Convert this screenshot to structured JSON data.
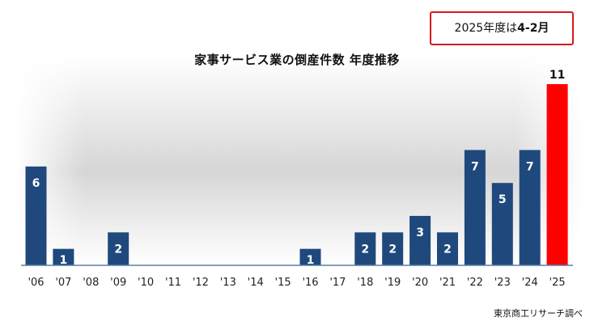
{
  "note": {
    "prefix": "2025年度は",
    "emphasis": "4-2月"
  },
  "source": "東京商工リサーチ調べ",
  "colors": {
    "bar": "#1f497d",
    "highlight": "#ff0000",
    "axis": "#5a7fa8"
  },
  "chart_data": {
    "type": "bar",
    "title": "家事サービス業の倒産件数 年度推移",
    "xlabel": "",
    "ylabel": "",
    "ylim": [
      0,
      11
    ],
    "grid": false,
    "categories": [
      "'06",
      "'07",
      "'08",
      "'09",
      "'10",
      "'11",
      "'12",
      "'13",
      "'14",
      "'15",
      "'16",
      "'17",
      "'18",
      "'19",
      "'20",
      "'21",
      "'22",
      "'23",
      "'24",
      "'25"
    ],
    "values": [
      6,
      1,
      0,
      2,
      0,
      0,
      0,
      0,
      0,
      0,
      1,
      0,
      2,
      2,
      3,
      2,
      7,
      5,
      7,
      11
    ],
    "data_labels": [
      "6",
      "1",
      "",
      "2",
      "",
      "",
      "",
      "",
      "",
      "",
      "1",
      "",
      "2",
      "2",
      "3",
      "2",
      "7",
      "5",
      "7",
      "11"
    ],
    "highlight_category": "'25"
  }
}
